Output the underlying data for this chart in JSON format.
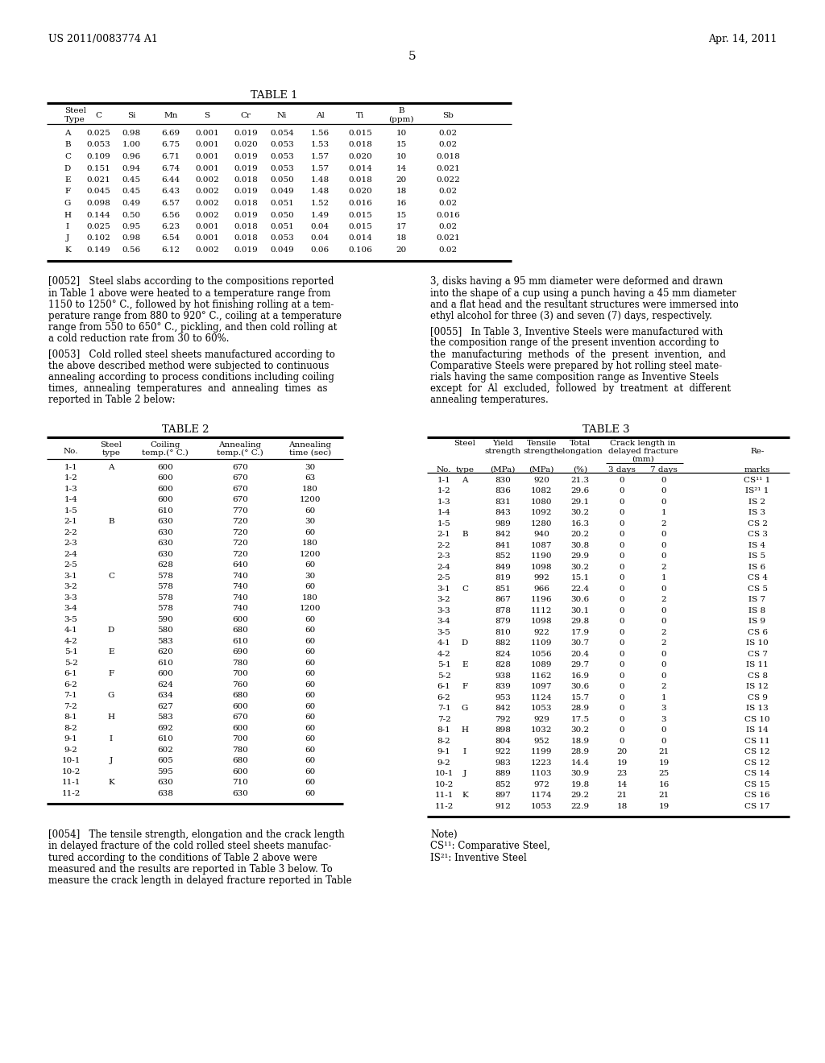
{
  "header_left": "US 2011/0083774 A1",
  "header_right": "Apr. 14, 2011",
  "page_number": "5",
  "table1_title": "TABLE 1",
  "table1_data": [
    [
      "A",
      "0.025",
      "0.98",
      "6.69",
      "0.001",
      "0.019",
      "0.054",
      "1.56",
      "0.015",
      "10",
      "0.02"
    ],
    [
      "B",
      "0.053",
      "1.00",
      "6.75",
      "0.001",
      "0.020",
      "0.053",
      "1.53",
      "0.018",
      "15",
      "0.02"
    ],
    [
      "C",
      "0.109",
      "0.96",
      "6.71",
      "0.001",
      "0.019",
      "0.053",
      "1.57",
      "0.020",
      "10",
      "0.018"
    ],
    [
      "D",
      "0.151",
      "0.94",
      "6.74",
      "0.001",
      "0.019",
      "0.053",
      "1.57",
      "0.014",
      "14",
      "0.021"
    ],
    [
      "E",
      "0.021",
      "0.45",
      "6.44",
      "0.002",
      "0.018",
      "0.050",
      "1.48",
      "0.018",
      "20",
      "0.022"
    ],
    [
      "F",
      "0.045",
      "0.45",
      "6.43",
      "0.002",
      "0.019",
      "0.049",
      "1.48",
      "0.020",
      "18",
      "0.02"
    ],
    [
      "G",
      "0.098",
      "0.49",
      "6.57",
      "0.002",
      "0.018",
      "0.051",
      "1.52",
      "0.016",
      "16",
      "0.02"
    ],
    [
      "H",
      "0.144",
      "0.50",
      "6.56",
      "0.002",
      "0.019",
      "0.050",
      "1.49",
      "0.015",
      "15",
      "0.016"
    ],
    [
      "I",
      "0.025",
      "0.95",
      "6.23",
      "0.001",
      "0.018",
      "0.051",
      "0.04",
      "0.015",
      "17",
      "0.02"
    ],
    [
      "J",
      "0.102",
      "0.98",
      "6.54",
      "0.001",
      "0.018",
      "0.053",
      "0.04",
      "0.014",
      "18",
      "0.021"
    ],
    [
      "K",
      "0.149",
      "0.56",
      "6.12",
      "0.002",
      "0.019",
      "0.049",
      "0.06",
      "0.106",
      "20",
      "0.02"
    ]
  ],
  "para_0052_lines": [
    "[0052]   Steel slabs according to the compositions reported",
    "in Table 1 above were heated to a temperature range from",
    "1150 to 1250° C., followed by hot finishing rolling at a tem-",
    "perature range from 880 to 920° C., coiling at a temperature",
    "range from 550 to 650° C., pickling, and then cold rolling at",
    "a cold reduction rate from 30 to 60%."
  ],
  "para_0053_lines": [
    "[0053]   Cold rolled steel sheets manufactured according to",
    "the above described method were subjected to continuous",
    "annealing according to process conditions including coiling",
    "times,  annealing  temperatures  and  annealing  times  as",
    "reported in Table 2 below:"
  ],
  "para_right1_lines": [
    "3, disks having a 95 mm diameter were deformed and drawn",
    "into the shape of a cup using a punch having a 45 mm diameter",
    "and a flat head and the resultant structures were immersed into",
    "ethyl alcohol for three (3) and seven (7) days, respectively."
  ],
  "para_right2_lines": [
    "[0055]   In Table 3, Inventive Steels were manufactured with",
    "the composition range of the present invention according to",
    "the  manufacturing  methods  of  the  present  invention,  and",
    "Comparative Steels were prepared by hot rolling steel mate-",
    "rials having the same composition range as Inventive Steels",
    "except  for  Al  excluded,  followed  by  treatment  at  different",
    "annealing temperatures."
  ],
  "table2_title": "TABLE 2",
  "table2_data": [
    [
      "1-1",
      "A",
      "600",
      "670",
      "30"
    ],
    [
      "1-2",
      "",
      "600",
      "670",
      "63"
    ],
    [
      "1-3",
      "",
      "600",
      "670",
      "180"
    ],
    [
      "1-4",
      "",
      "600",
      "670",
      "1200"
    ],
    [
      "1-5",
      "",
      "610",
      "770",
      "60"
    ],
    [
      "2-1",
      "B",
      "630",
      "720",
      "30"
    ],
    [
      "2-2",
      "",
      "630",
      "720",
      "60"
    ],
    [
      "2-3",
      "",
      "630",
      "720",
      "180"
    ],
    [
      "2-4",
      "",
      "630",
      "720",
      "1200"
    ],
    [
      "2-5",
      "",
      "628",
      "640",
      "60"
    ],
    [
      "3-1",
      "C",
      "578",
      "740",
      "30"
    ],
    [
      "3-2",
      "",
      "578",
      "740",
      "60"
    ],
    [
      "3-3",
      "",
      "578",
      "740",
      "180"
    ],
    [
      "3-4",
      "",
      "578",
      "740",
      "1200"
    ],
    [
      "3-5",
      "",
      "590",
      "600",
      "60"
    ],
    [
      "4-1",
      "D",
      "580",
      "680",
      "60"
    ],
    [
      "4-2",
      "",
      "583",
      "610",
      "60"
    ],
    [
      "5-1",
      "E",
      "620",
      "690",
      "60"
    ],
    [
      "5-2",
      "",
      "610",
      "780",
      "60"
    ],
    [
      "6-1",
      "F",
      "600",
      "700",
      "60"
    ],
    [
      "6-2",
      "",
      "624",
      "760",
      "60"
    ],
    [
      "7-1",
      "G",
      "634",
      "680",
      "60"
    ],
    [
      "7-2",
      "",
      "627",
      "600",
      "60"
    ],
    [
      "8-1",
      "H",
      "583",
      "670",
      "60"
    ],
    [
      "8-2",
      "",
      "692",
      "600",
      "60"
    ],
    [
      "9-1",
      "I",
      "610",
      "700",
      "60"
    ],
    [
      "9-2",
      "",
      "602",
      "780",
      "60"
    ],
    [
      "10-1",
      "J",
      "605",
      "680",
      "60"
    ],
    [
      "10-2",
      "",
      "595",
      "600",
      "60"
    ],
    [
      "11-1",
      "K",
      "630",
      "710",
      "60"
    ],
    [
      "11-2",
      "",
      "638",
      "630",
      "60"
    ]
  ],
  "table3_title": "TABLE 3",
  "table3_data": [
    [
      "1-1",
      "A",
      "830",
      "920",
      "21.3",
      "0",
      "0",
      "CS¹¹ 1"
    ],
    [
      "1-2",
      "",
      "836",
      "1082",
      "29.6",
      "0",
      "0",
      "IS²¹ 1"
    ],
    [
      "1-3",
      "",
      "831",
      "1080",
      "29.1",
      "0",
      "0",
      "IS 2"
    ],
    [
      "1-4",
      "",
      "843",
      "1092",
      "30.2",
      "0",
      "1",
      "IS 3"
    ],
    [
      "1-5",
      "",
      "989",
      "1280",
      "16.3",
      "0",
      "2",
      "CS 2"
    ],
    [
      "2-1",
      "B",
      "842",
      "940",
      "20.2",
      "0",
      "0",
      "CS 3"
    ],
    [
      "2-2",
      "",
      "841",
      "1087",
      "30.8",
      "0",
      "0",
      "IS 4"
    ],
    [
      "2-3",
      "",
      "852",
      "1190",
      "29.9",
      "0",
      "0",
      "IS 5"
    ],
    [
      "2-4",
      "",
      "849",
      "1098",
      "30.2",
      "0",
      "2",
      "IS 6"
    ],
    [
      "2-5",
      "",
      "819",
      "992",
      "15.1",
      "0",
      "1",
      "CS 4"
    ],
    [
      "3-1",
      "C",
      "851",
      "966",
      "22.4",
      "0",
      "0",
      "CS 5"
    ],
    [
      "3-2",
      "",
      "867",
      "1196",
      "30.6",
      "0",
      "2",
      "IS 7"
    ],
    [
      "3-3",
      "",
      "878",
      "1112",
      "30.1",
      "0",
      "0",
      "IS 8"
    ],
    [
      "3-4",
      "",
      "879",
      "1098",
      "29.8",
      "0",
      "0",
      "IS 9"
    ],
    [
      "3-5",
      "",
      "810",
      "922",
      "17.9",
      "0",
      "2",
      "CS 6"
    ],
    [
      "4-1",
      "D",
      "882",
      "1109",
      "30.7",
      "0",
      "2",
      "IS 10"
    ],
    [
      "4-2",
      "",
      "824",
      "1056",
      "20.4",
      "0",
      "0",
      "CS 7"
    ],
    [
      "5-1",
      "E",
      "828",
      "1089",
      "29.7",
      "0",
      "0",
      "IS 11"
    ],
    [
      "5-2",
      "",
      "938",
      "1162",
      "16.9",
      "0",
      "0",
      "CS 8"
    ],
    [
      "6-1",
      "F",
      "839",
      "1097",
      "30.6",
      "0",
      "2",
      "IS 12"
    ],
    [
      "6-2",
      "",
      "953",
      "1124",
      "15.7",
      "0",
      "1",
      "CS 9"
    ],
    [
      "7-1",
      "G",
      "842",
      "1053",
      "28.9",
      "0",
      "3",
      "IS 13"
    ],
    [
      "7-2",
      "",
      "792",
      "929",
      "17.5",
      "0",
      "3",
      "CS 10"
    ],
    [
      "8-1",
      "H",
      "898",
      "1032",
      "30.2",
      "0",
      "0",
      "IS 14"
    ],
    [
      "8-2",
      "",
      "804",
      "952",
      "18.9",
      "0",
      "0",
      "CS 11"
    ],
    [
      "9-1",
      "I",
      "922",
      "1199",
      "28.9",
      "20",
      "21",
      "CS 12"
    ],
    [
      "9-2",
      "",
      "983",
      "1223",
      "14.4",
      "19",
      "19",
      "CS 12"
    ],
    [
      "10-1",
      "J",
      "889",
      "1103",
      "30.9",
      "23",
      "25",
      "CS 14"
    ],
    [
      "10-2",
      "",
      "852",
      "972",
      "19.8",
      "14",
      "16",
      "CS 15"
    ],
    [
      "11-1",
      "K",
      "897",
      "1174",
      "29.2",
      "21",
      "21",
      "CS 16"
    ],
    [
      "11-2",
      "",
      "912",
      "1053",
      "22.9",
      "18",
      "19",
      "CS 17"
    ]
  ],
  "para_0054_lines": [
    "[0054]   The tensile strength, elongation and the crack length",
    "in delayed fracture of the cold rolled steel sheets manufac-",
    "tured according to the conditions of Table 2 above were",
    "measured and the results are reported in Table 3 below. To",
    "measure the crack length in delayed fracture reported in Table"
  ],
  "note1": "Note)",
  "note2": "CS¹¹: Comparative Steel,",
  "note3": "IS²¹: Inventive Steel"
}
